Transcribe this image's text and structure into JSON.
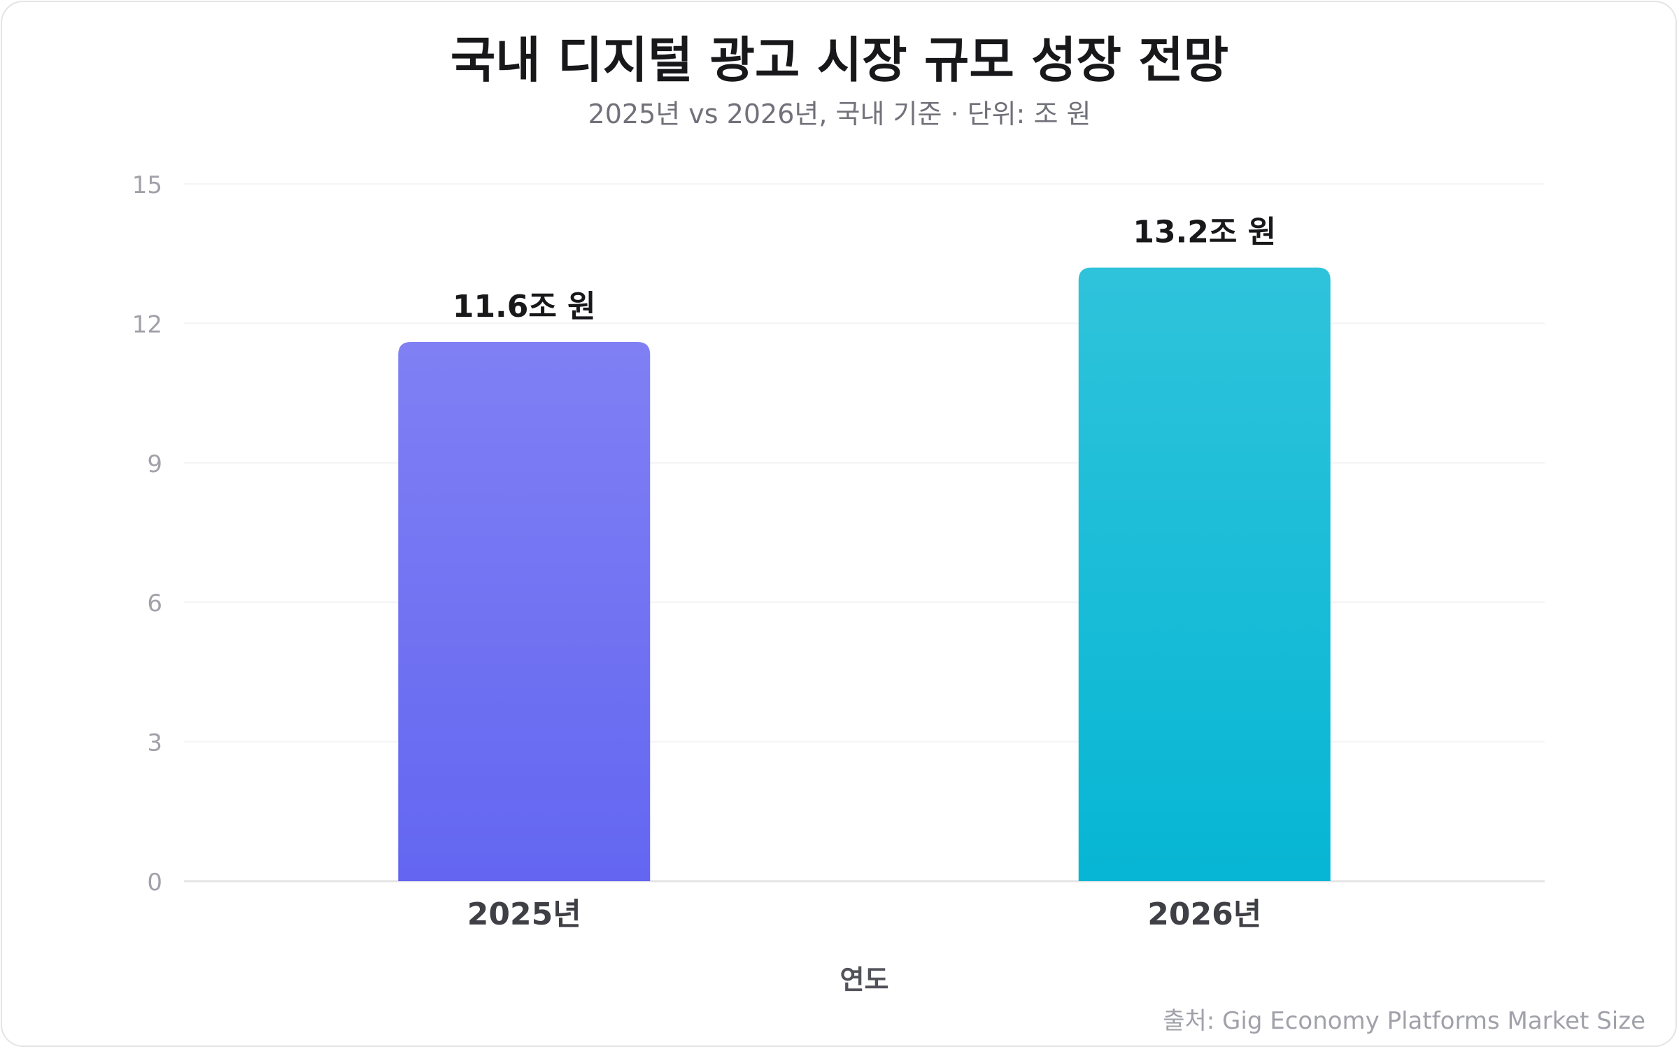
{
  "chart_data": {
    "type": "bar",
    "title": "국내 디지털 광고 시장 규모 성장 전망",
    "subtitle": "2025년 vs 2026년, 국내 기준 · 단위: 조 원",
    "xlabel": "연도",
    "ylabel": "",
    "categories": [
      "2025년",
      "2026년"
    ],
    "values": [
      11.6,
      13.2
    ],
    "data_labels": [
      "11.6조 원",
      "13.2조 원"
    ],
    "ylim": [
      0,
      15
    ],
    "yticks": [
      0,
      3,
      6,
      9,
      12,
      15
    ],
    "grid": true,
    "colors": [
      [
        "#8080f4",
        "#6366f1"
      ],
      [
        "#2fc3db",
        "#06b6d4"
      ]
    ],
    "source": "출처: Gig Economy Platforms Market Size"
  }
}
